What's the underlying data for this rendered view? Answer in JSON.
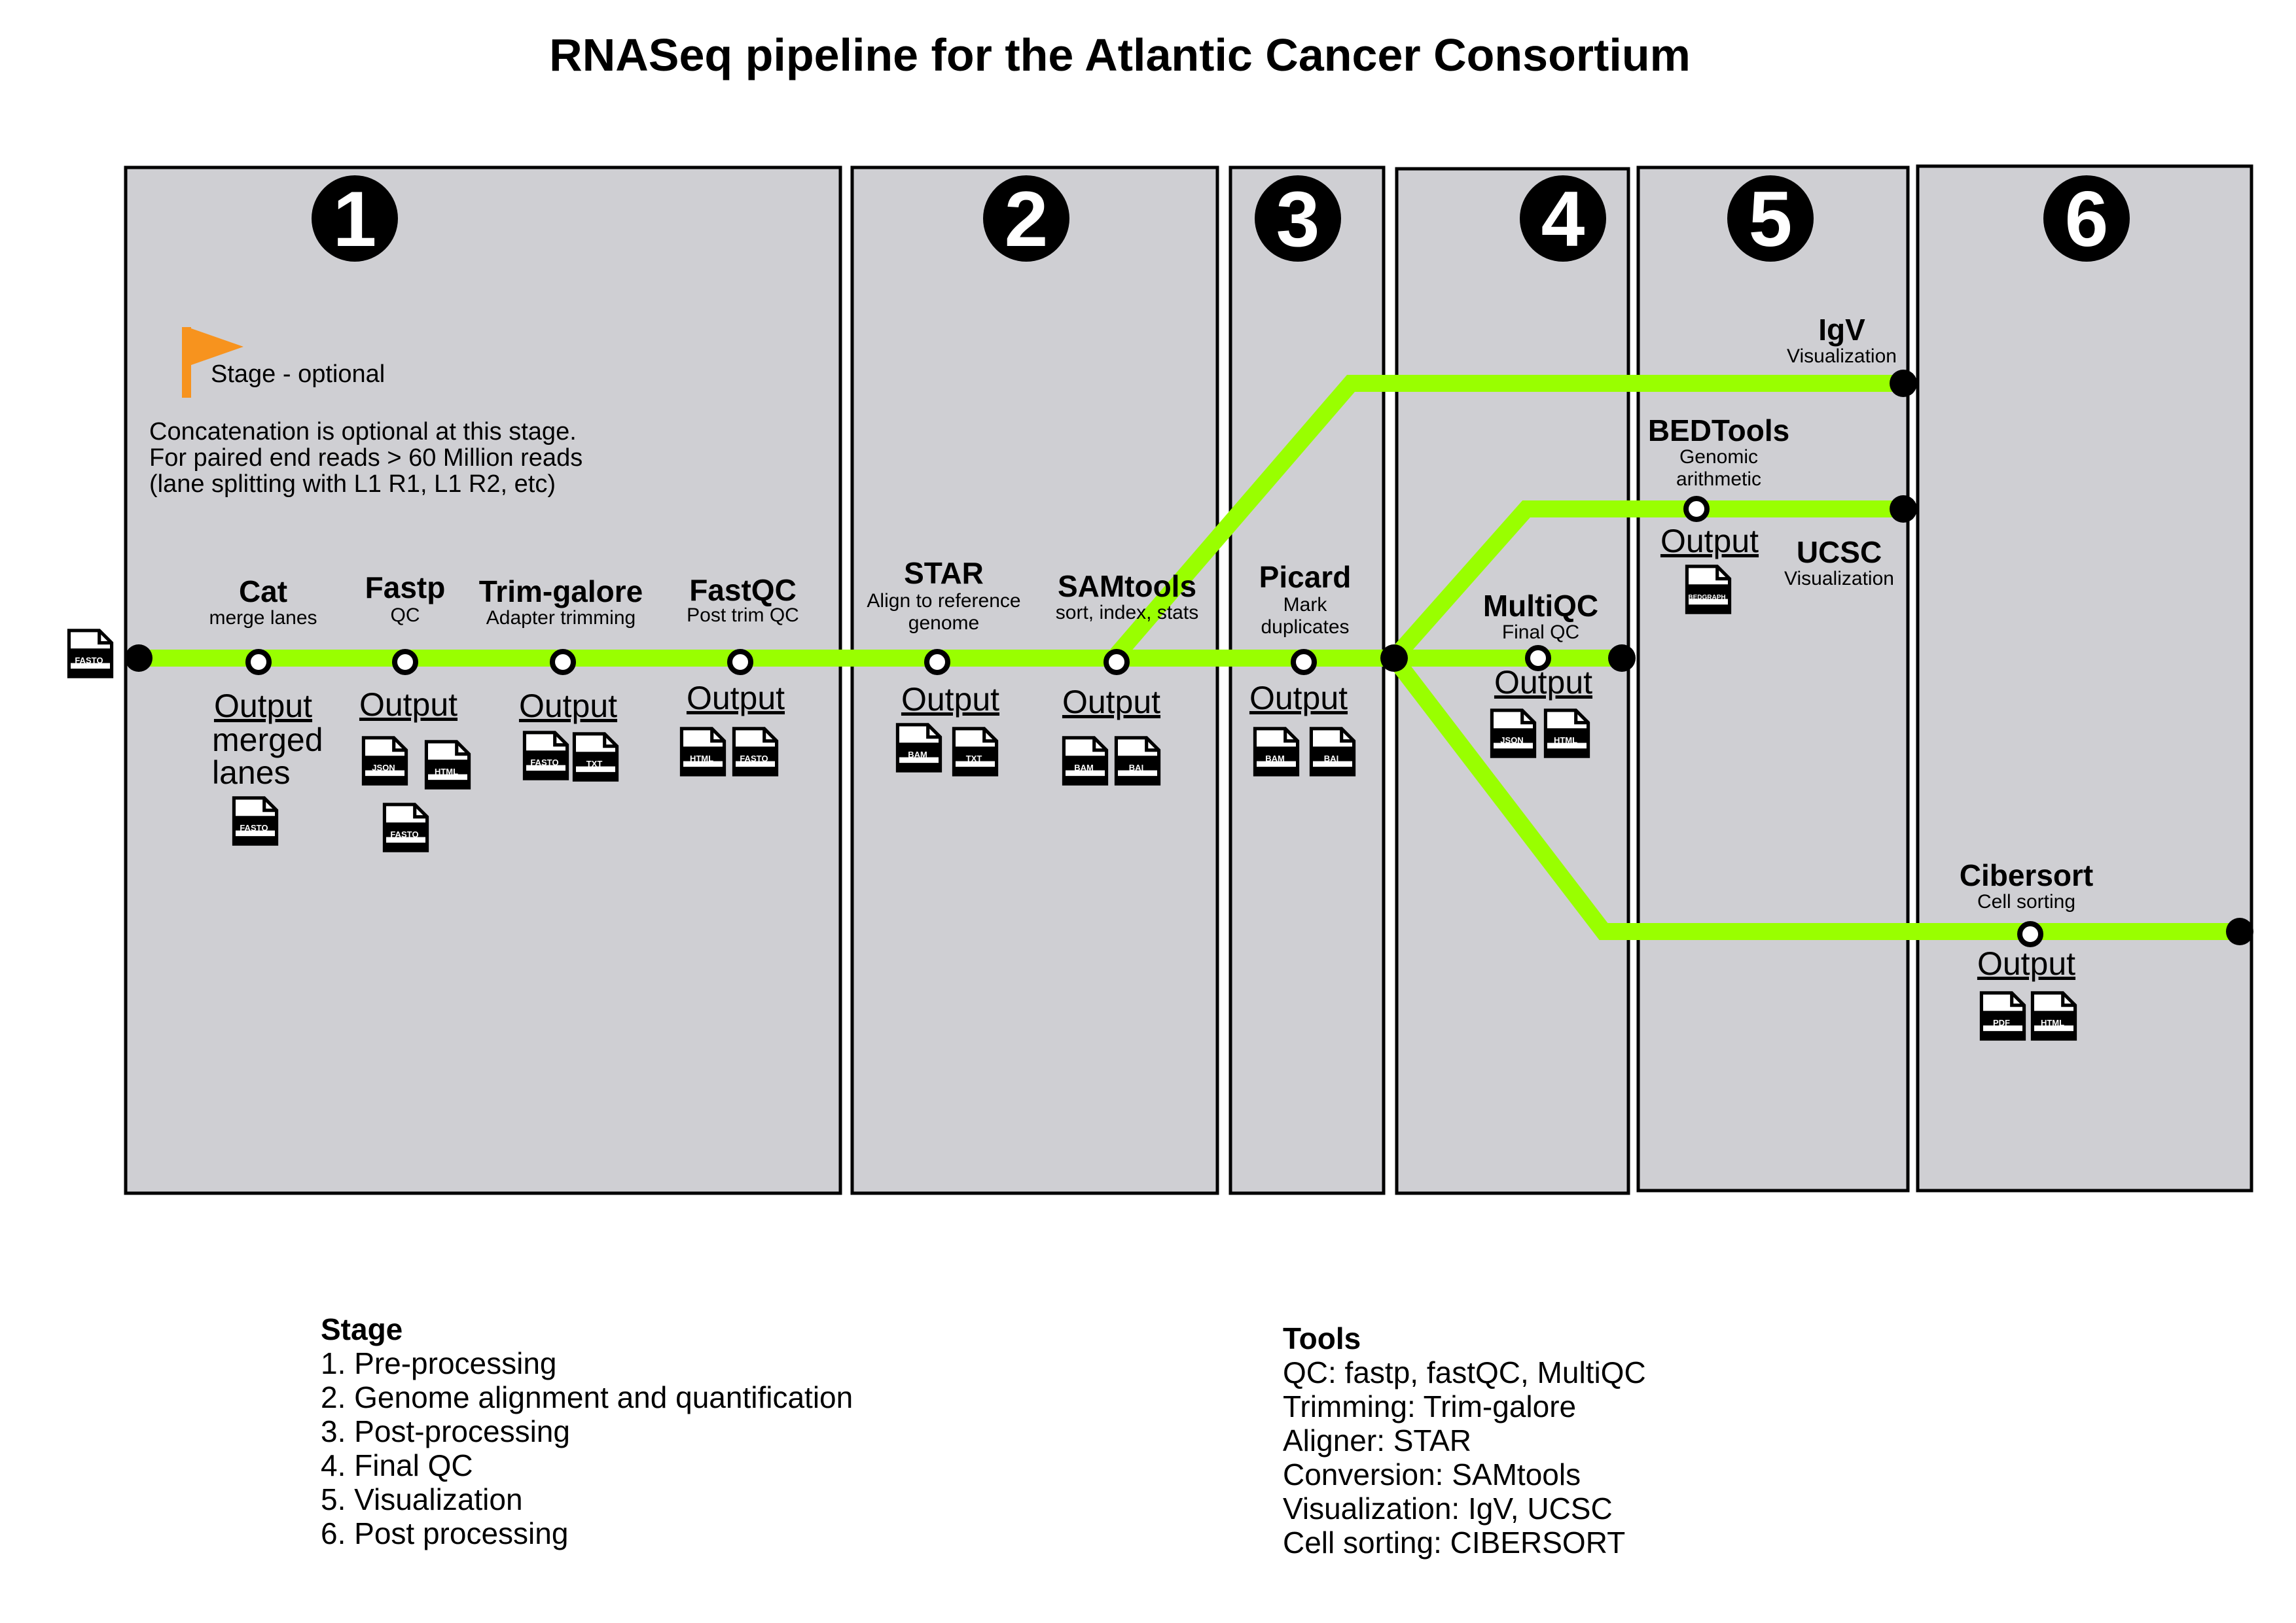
{
  "title": "RNASeq pipeline for the Atlantic Cancer Consortium",
  "stages": [
    "1",
    "2",
    "3",
    "4",
    "5",
    "6"
  ],
  "flag_label": "Stage - optional",
  "flag_color": "#f7931e",
  "track_color": "#99ff00",
  "panel_color": "#cfcfd3",
  "concat_note": [
    "Concatenation is optional at this stage.",
    "For paired end reads > 60 Million reads",
    "(lane splitting with L1 R1, L1 R2, etc)"
  ],
  "tools": {
    "cat": {
      "name": "Cat",
      "desc": [
        "merge lanes"
      ]
    },
    "fastp": {
      "name": "Fastp",
      "desc": [
        "QC"
      ]
    },
    "trimgalore": {
      "name": "Trim-galore",
      "desc": [
        "Adapter trimming"
      ]
    },
    "fastqc": {
      "name": "FastQC",
      "desc": [
        "Post trim QC"
      ]
    },
    "star": {
      "name": "STAR",
      "desc": [
        "Align to reference",
        "genome"
      ]
    },
    "samtools": {
      "name": "SAMtools",
      "desc": [
        "sort, index, stats"
      ]
    },
    "picard": {
      "name": "Picard",
      "desc": [
        "Mark",
        "duplicates"
      ]
    },
    "multiqc": {
      "name": "MultiQC",
      "desc": [
        "Final QC"
      ]
    },
    "igv": {
      "name": "IgV",
      "desc": [
        "Visualization"
      ]
    },
    "bedtools": {
      "name": "BEDTools",
      "desc": [
        "Genomic",
        "arithmetic"
      ]
    },
    "ucsc": {
      "name": "UCSC",
      "desc": [
        "Visualization"
      ]
    },
    "cibersort": {
      "name": "Cibersort",
      "desc": [
        "Cell sorting"
      ]
    }
  },
  "output_label": "Output",
  "merged_lanes": [
    "merged",
    "lanes"
  ],
  "file_types": {
    "input": [
      "FASTQ"
    ],
    "cat": [
      "FASTQ"
    ],
    "fastp": [
      "JSON",
      "HTML",
      "FASTQ"
    ],
    "trimgalore": [
      "FASTQ",
      "TXT"
    ],
    "fastqc": [
      "HTML",
      "FASTQ"
    ],
    "star": [
      "BAM",
      "TXT"
    ],
    "samtools": [
      "BAM",
      "BAI"
    ],
    "picard": [
      "BAM",
      "BAI"
    ],
    "multiqc": [
      "JSON",
      "HTML"
    ],
    "bedtools": [
      "BEDGRAPH"
    ],
    "cibersort": [
      "PDF",
      "HTML"
    ]
  },
  "legend_stage": {
    "title": "Stage",
    "items": [
      "1. Pre-processing",
      "2. Genome alignment and quantification",
      "3. Post-processing",
      "4. Final QC",
      "5. Visualization",
      "6. Post processing"
    ]
  },
  "legend_tools": {
    "title": "Tools",
    "items": [
      "QC: fastp, fastQC, MultiQC",
      "Trimming: Trim-galore",
      "Aligner: STAR",
      "Conversion: SAMtools",
      "Visualization: IgV, UCSC",
      "Cell sorting: CIBERSORT"
    ]
  }
}
